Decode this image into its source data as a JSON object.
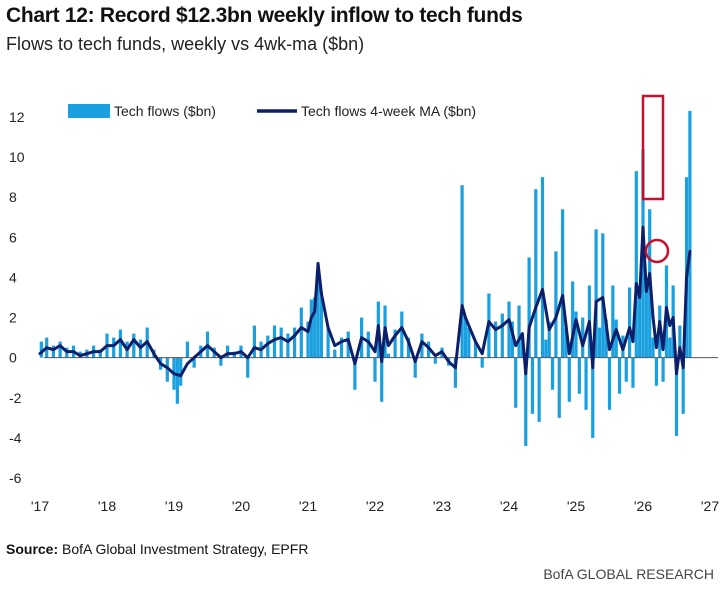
{
  "header": {
    "title": "Chart 12: Record $12.3bn weekly inflow to tech funds",
    "subtitle": "Flows to tech funds, weekly vs 4wk-ma ($bn)"
  },
  "footer": {
    "source_label": "Source:",
    "source_text": " BofA Global Investment Strategy, EPFR",
    "brand": "BofA GLOBAL RESEARCH"
  },
  "colors": {
    "bars": "#1a9fdf",
    "ma_line": "#0b1f6a",
    "highlight": "#c8102e",
    "axis": "#555555"
  },
  "chart_data": {
    "type": "bar",
    "title": "Chart 12: Record $12.3bn weekly inflow to tech funds",
    "subtitle": "Flows to tech funds, weekly vs 4wk-ma ($bn)",
    "xlim": [
      2017.0,
      2027.0
    ],
    "ylim": [
      -6,
      12
    ],
    "x_ticks": [
      "'17",
      "'18",
      "'19",
      "'20",
      "'21",
      "'22",
      "'23",
      "'24",
      "'25",
      "'26",
      "'27"
    ],
    "y_ticks": [
      12,
      10,
      8,
      6,
      4,
      2,
      0,
      -2,
      -4,
      -6
    ],
    "grid": false,
    "legend_position": "top-left",
    "highlights": [
      {
        "shape": "rectangle",
        "target": "Tech flows ($bn)",
        "value": 12.3
      },
      {
        "shape": "circle",
        "target": "Tech flows 4-week MA ($bn)",
        "value": 5.3
      }
    ],
    "series": [
      {
        "name": "Tech flows ($bn)",
        "kind": "bar",
        "points": [
          [
            2017.02,
            0.8
          ],
          [
            2017.1,
            1.0
          ],
          [
            2017.2,
            0.6
          ],
          [
            2017.3,
            0.8
          ],
          [
            2017.4,
            0.5
          ],
          [
            2017.5,
            0.6
          ],
          [
            2017.6,
            0.3
          ],
          [
            2017.7,
            0.4
          ],
          [
            2017.8,
            0.6
          ],
          [
            2017.9,
            0.4
          ],
          [
            2018.0,
            1.2
          ],
          [
            2018.1,
            1.0
          ],
          [
            2018.2,
            1.4
          ],
          [
            2018.3,
            0.8
          ],
          [
            2018.4,
            1.2
          ],
          [
            2018.5,
            0.9
          ],
          [
            2018.6,
            1.5
          ],
          [
            2018.7,
            0.4
          ],
          [
            2018.8,
            -0.6
          ],
          [
            2018.9,
            -1.2
          ],
          [
            2019.0,
            -1.6
          ],
          [
            2019.05,
            -2.3
          ],
          [
            2019.1,
            -1.4
          ],
          [
            2019.2,
            0.8
          ],
          [
            2019.3,
            -0.5
          ],
          [
            2019.4,
            0.6
          ],
          [
            2019.5,
            1.3
          ],
          [
            2019.6,
            0.5
          ],
          [
            2019.7,
            -0.4
          ],
          [
            2019.8,
            0.6
          ],
          [
            2019.9,
            0.3
          ],
          [
            2020.0,
            0.6
          ],
          [
            2020.1,
            -1.0
          ],
          [
            2020.2,
            1.6
          ],
          [
            2020.3,
            0.8
          ],
          [
            2020.4,
            1.1
          ],
          [
            2020.5,
            1.6
          ],
          [
            2020.6,
            1.5
          ],
          [
            2020.7,
            1.2
          ],
          [
            2020.8,
            1.5
          ],
          [
            2020.9,
            2.5
          ],
          [
            2021.0,
            1.8
          ],
          [
            2021.05,
            2.9
          ],
          [
            2021.1,
            3.0
          ],
          [
            2021.15,
            4.1
          ],
          [
            2021.2,
            3.3
          ],
          [
            2021.3,
            1.5
          ],
          [
            2021.4,
            0.4
          ],
          [
            2021.5,
            1.0
          ],
          [
            2021.6,
            1.3
          ],
          [
            2021.7,
            -1.6
          ],
          [
            2021.8,
            2.0
          ],
          [
            2021.9,
            1.3
          ],
          [
            2022.0,
            -1.2
          ],
          [
            2022.05,
            2.8
          ],
          [
            2022.1,
            -2.2
          ],
          [
            2022.15,
            2.6
          ],
          [
            2022.2,
            0.2
          ],
          [
            2022.3,
            1.4
          ],
          [
            2022.4,
            2.3
          ],
          [
            2022.5,
            1.0
          ],
          [
            2022.6,
            -1.0
          ],
          [
            2022.7,
            1.2
          ],
          [
            2022.8,
            0.8
          ],
          [
            2022.9,
            -0.3
          ],
          [
            2023.0,
            0.5
          ],
          [
            2023.1,
            -0.4
          ],
          [
            2023.2,
            -1.5
          ],
          [
            2023.3,
            8.6
          ],
          [
            2023.35,
            2.0
          ],
          [
            2023.4,
            1.5
          ],
          [
            2023.5,
            0.8
          ],
          [
            2023.6,
            -0.5
          ],
          [
            2023.7,
            3.2
          ],
          [
            2023.8,
            1.8
          ],
          [
            2023.9,
            2.2
          ],
          [
            2024.0,
            2.8
          ],
          [
            2024.05,
            1.8
          ],
          [
            2024.1,
            -2.5
          ],
          [
            2024.15,
            2.6
          ],
          [
            2024.2,
            1.2
          ],
          [
            2024.25,
            -4.4
          ],
          [
            2024.3,
            5.0
          ],
          [
            2024.35,
            -2.8
          ],
          [
            2024.4,
            8.4
          ],
          [
            2024.45,
            -3.2
          ],
          [
            2024.5,
            9.0
          ],
          [
            2024.55,
            0.9
          ],
          [
            2024.6,
            1.8
          ],
          [
            2024.65,
            -1.6
          ],
          [
            2024.7,
            5.3
          ],
          [
            2024.75,
            -3.0
          ],
          [
            2024.8,
            7.4
          ],
          [
            2024.85,
            1.5
          ],
          [
            2024.9,
            -2.2
          ],
          [
            2024.95,
            3.8
          ],
          [
            2025.0,
            2.3
          ],
          [
            2025.05,
            -1.8
          ],
          [
            2025.1,
            2.0
          ],
          [
            2025.15,
            -2.6
          ],
          [
            2025.2,
            3.6
          ],
          [
            2025.25,
            -4.0
          ],
          [
            2025.3,
            6.4
          ],
          [
            2025.35,
            1.5
          ],
          [
            2025.4,
            6.2
          ],
          [
            2025.45,
            1.9
          ],
          [
            2025.5,
            -2.6
          ],
          [
            2025.55,
            3.6
          ],
          [
            2025.6,
            1.9
          ],
          [
            2025.65,
            -1.8
          ],
          [
            2025.7,
            1.1
          ],
          [
            2025.75,
            -1.2
          ],
          [
            2025.8,
            3.5
          ],
          [
            2025.85,
            -1.5
          ],
          [
            2025.9,
            9.3
          ],
          [
            2025.95,
            3.5
          ],
          [
            2026.0,
            10.4
          ],
          [
            2026.05,
            3.4
          ],
          [
            2026.1,
            7.4
          ],
          [
            2026.15,
            1.0
          ],
          [
            2026.2,
            -1.4
          ],
          [
            2026.25,
            2.6
          ],
          [
            2026.3,
            -1.2
          ],
          [
            2026.35,
            4.6
          ],
          [
            2026.4,
            1.0
          ],
          [
            2026.45,
            3.6
          ],
          [
            2026.5,
            -3.9
          ],
          [
            2026.55,
            1.6
          ],
          [
            2026.6,
            -2.8
          ],
          [
            2026.65,
            9.0
          ],
          [
            2026.7,
            12.3
          ]
        ]
      },
      {
        "name": "Tech flows 4-week MA ($bn)",
        "kind": "line",
        "points": [
          [
            2017.0,
            0.2
          ],
          [
            2017.1,
            0.5
          ],
          [
            2017.2,
            0.4
          ],
          [
            2017.3,
            0.6
          ],
          [
            2017.4,
            0.3
          ],
          [
            2017.5,
            0.3
          ],
          [
            2017.6,
            0.1
          ],
          [
            2017.7,
            0.2
          ],
          [
            2017.8,
            0.3
          ],
          [
            2017.9,
            0.3
          ],
          [
            2018.0,
            0.6
          ],
          [
            2018.1,
            0.6
          ],
          [
            2018.2,
            0.9
          ],
          [
            2018.3,
            0.4
          ],
          [
            2018.4,
            0.9
          ],
          [
            2018.5,
            0.5
          ],
          [
            2018.6,
            0.8
          ],
          [
            2018.7,
            0.2
          ],
          [
            2018.8,
            -0.3
          ],
          [
            2018.9,
            -0.5
          ],
          [
            2019.0,
            -0.8
          ],
          [
            2019.1,
            -0.9
          ],
          [
            2019.2,
            -0.3
          ],
          [
            2019.3,
            0.0
          ],
          [
            2019.4,
            0.3
          ],
          [
            2019.5,
            0.6
          ],
          [
            2019.6,
            0.3
          ],
          [
            2019.7,
            0.0
          ],
          [
            2019.8,
            0.2
          ],
          [
            2019.9,
            0.2
          ],
          [
            2020.0,
            0.3
          ],
          [
            2020.1,
            0.0
          ],
          [
            2020.2,
            0.5
          ],
          [
            2020.3,
            0.4
          ],
          [
            2020.4,
            0.7
          ],
          [
            2020.5,
            0.9
          ],
          [
            2020.6,
            1.0
          ],
          [
            2020.7,
            0.8
          ],
          [
            2020.8,
            1.1
          ],
          [
            2020.9,
            1.5
          ],
          [
            2021.0,
            1.3
          ],
          [
            2021.05,
            2.0
          ],
          [
            2021.1,
            2.3
          ],
          [
            2021.15,
            4.7
          ],
          [
            2021.2,
            3.2
          ],
          [
            2021.3,
            1.5
          ],
          [
            2021.4,
            0.6
          ],
          [
            2021.5,
            0.8
          ],
          [
            2021.6,
            0.9
          ],
          [
            2021.7,
            -0.3
          ],
          [
            2021.8,
            1.0
          ],
          [
            2021.9,
            0.8
          ],
          [
            2022.0,
            0.3
          ],
          [
            2022.05,
            1.6
          ],
          [
            2022.1,
            -0.2
          ],
          [
            2022.15,
            1.5
          ],
          [
            2022.2,
            0.6
          ],
          [
            2022.3,
            1.1
          ],
          [
            2022.4,
            1.5
          ],
          [
            2022.5,
            0.8
          ],
          [
            2022.6,
            -0.2
          ],
          [
            2022.7,
            0.8
          ],
          [
            2022.8,
            0.5
          ],
          [
            2022.9,
            0.1
          ],
          [
            2023.0,
            0.3
          ],
          [
            2023.1,
            -0.2
          ],
          [
            2023.2,
            -0.5
          ],
          [
            2023.3,
            2.6
          ],
          [
            2023.35,
            2.0
          ],
          [
            2023.4,
            1.6
          ],
          [
            2023.5,
            0.8
          ],
          [
            2023.6,
            0.2
          ],
          [
            2023.7,
            1.8
          ],
          [
            2023.8,
            1.4
          ],
          [
            2023.9,
            1.6
          ],
          [
            2024.0,
            1.9
          ],
          [
            2024.1,
            0.6
          ],
          [
            2024.2,
            1.2
          ],
          [
            2024.25,
            -0.8
          ],
          [
            2024.3,
            1.5
          ],
          [
            2024.4,
            2.5
          ],
          [
            2024.5,
            3.4
          ],
          [
            2024.6,
            1.4
          ],
          [
            2024.7,
            2.0
          ],
          [
            2024.8,
            3.1
          ],
          [
            2024.9,
            0.2
          ],
          [
            2025.0,
            1.9
          ],
          [
            2025.1,
            0.6
          ],
          [
            2025.2,
            1.8
          ],
          [
            2025.25,
            -0.5
          ],
          [
            2025.3,
            2.8
          ],
          [
            2025.4,
            3.0
          ],
          [
            2025.5,
            0.4
          ],
          [
            2025.6,
            1.4
          ],
          [
            2025.7,
            0.4
          ],
          [
            2025.8,
            1.5
          ],
          [
            2025.85,
            0.8
          ],
          [
            2025.9,
            3.7
          ],
          [
            2025.95,
            3.0
          ],
          [
            2026.0,
            6.5
          ],
          [
            2026.05,
            3.3
          ],
          [
            2026.1,
            4.2
          ],
          [
            2026.15,
            2.0
          ],
          [
            2026.2,
            0.5
          ],
          [
            2026.25,
            1.8
          ],
          [
            2026.3,
            0.4
          ],
          [
            2026.35,
            2.5
          ],
          [
            2026.4,
            1.6
          ],
          [
            2026.45,
            2.0
          ],
          [
            2026.5,
            -0.8
          ],
          [
            2026.55,
            0.5
          ],
          [
            2026.6,
            -0.5
          ],
          [
            2026.65,
            4.0
          ],
          [
            2026.7,
            5.3
          ]
        ]
      }
    ]
  }
}
